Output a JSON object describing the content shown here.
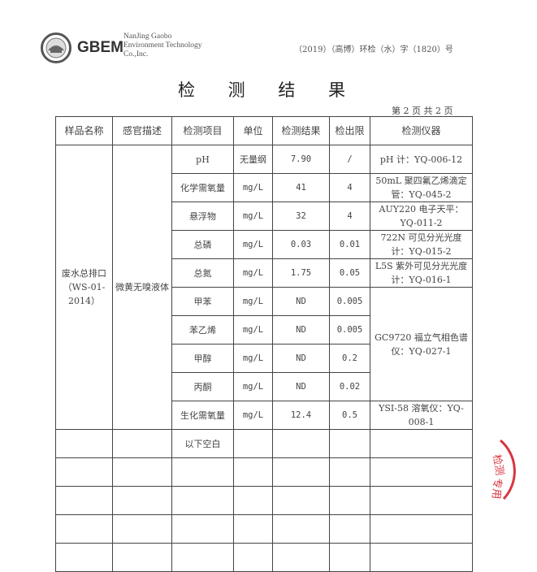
{
  "header": {
    "logo_text": "GBEM",
    "company_lines": [
      "NanJing Gaobo",
      "Environment Technology",
      "Co.,Inc."
    ],
    "doc_number": "（2019）（高博）环检（水）字（1820）号"
  },
  "title": "检 测 结 果",
  "page_info": "第 2 页 共 2 页",
  "table": {
    "headers": [
      "样品名称",
      "感官描述",
      "检测项目",
      "单位",
      "检测结果",
      "检出限",
      "检测仪器"
    ],
    "sample_name": "废水总排口（WS-01-2014）",
    "description": "微黄无嗅液体",
    "rows": [
      {
        "item": "pH",
        "unit": "无量纲",
        "result": "7.90",
        "limit": "/",
        "instrument": "pH 计：YQ-006-12"
      },
      {
        "item": "化学需氧量",
        "unit": "mg/L",
        "result": "41",
        "limit": "4",
        "instrument": "50mL 聚四氟乙烯滴定管：YQ-045-2"
      },
      {
        "item": "悬浮物",
        "unit": "mg/L",
        "result": "32",
        "limit": "4",
        "instrument": "AUY220 电子天平：YQ-011-2"
      },
      {
        "item": "总磷",
        "unit": "mg/L",
        "result": "0.03",
        "limit": "0.01",
        "instrument": "722N 可见分光光度计：YQ-015-2"
      },
      {
        "item": "总氮",
        "unit": "mg/L",
        "result": "1.75",
        "limit": "0.05",
        "instrument": "L5S 紫外可见分光光度计：YQ-016-1"
      },
      {
        "item": "甲苯",
        "unit": "mg/L",
        "result": "ND",
        "limit": "0.005",
        "instrument": "GC9720 福立气相色谱仪：YQ-027-1"
      },
      {
        "item": "苯乙烯",
        "unit": "mg/L",
        "result": "ND",
        "limit": "0.005"
      },
      {
        "item": "甲醇",
        "unit": "mg/L",
        "result": "ND",
        "limit": "0.2"
      },
      {
        "item": "丙酮",
        "unit": "mg/L",
        "result": "ND",
        "limit": "0.02"
      },
      {
        "item": "生化需氧量",
        "unit": "mg/L",
        "result": "12.4",
        "limit": "0.5",
        "instrument": "YSI-58 溶氧仪：YQ-008-1"
      }
    ],
    "blank_note": "以下空白"
  },
  "stamp_text": "检测专用章",
  "colors": {
    "stamp": "#d9343f",
    "text": "#333333"
  }
}
